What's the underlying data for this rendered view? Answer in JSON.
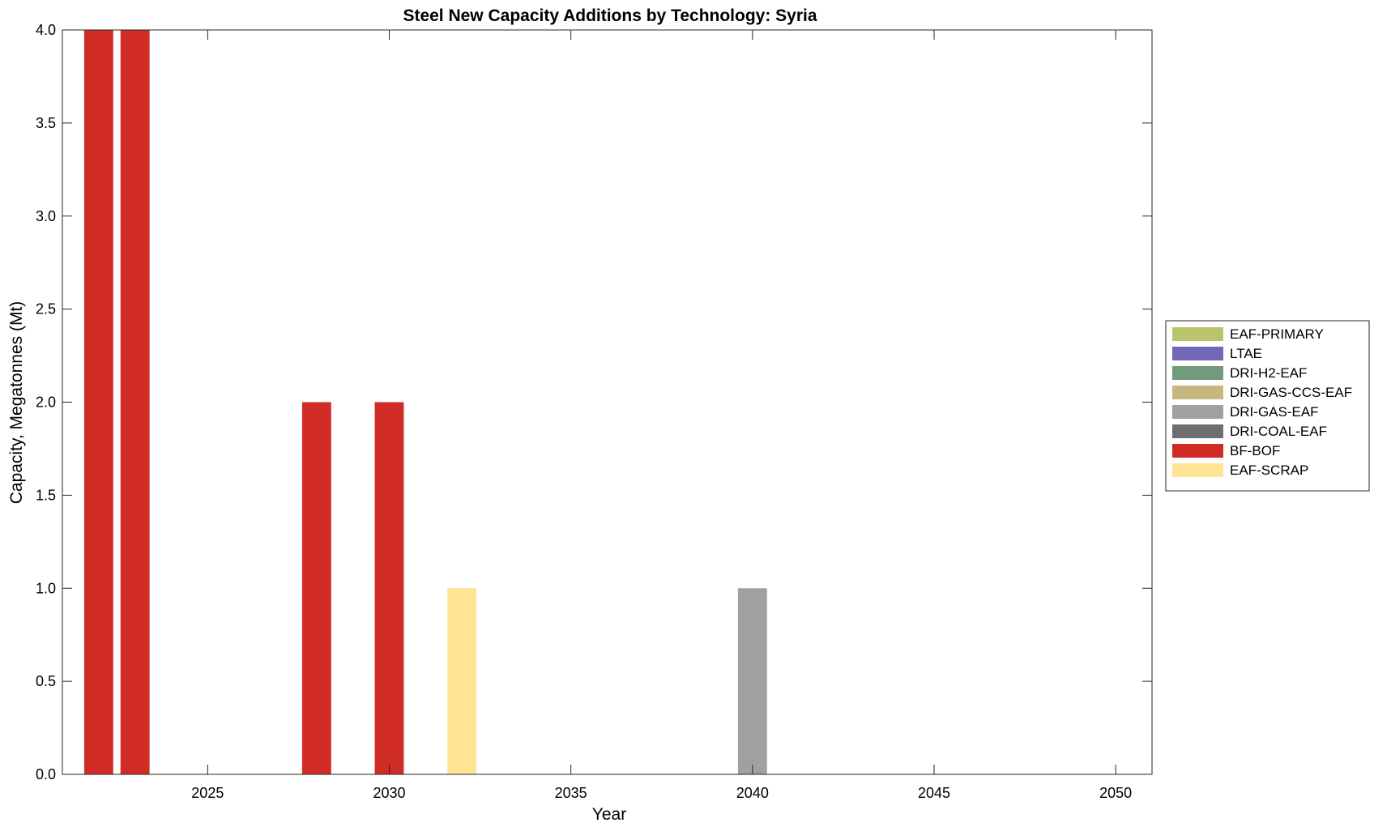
{
  "chart_data": {
    "type": "bar",
    "stacked": true,
    "title": "Steel New Capacity Additions by Technology: Syria",
    "xlabel": "Year",
    "ylabel": "Capacity, Megatonnes (Mt)",
    "x": [
      2022,
      2023,
      2028,
      2030,
      2032,
      2040
    ],
    "xlim": [
      2021,
      2051
    ],
    "ylim": [
      0,
      4
    ],
    "xticks": [
      2025,
      2030,
      2035,
      2040,
      2045,
      2050
    ],
    "yticks": [
      "0.0",
      "0.5",
      "1.0",
      "1.5",
      "2.0",
      "2.5",
      "3.0",
      "3.5",
      "4.0"
    ],
    "grid": false,
    "legend_position": "right",
    "series": [
      {
        "name": "EAF-PRIMARY",
        "color": "#bcc46a",
        "values": [
          0,
          0,
          0,
          0,
          0,
          0
        ]
      },
      {
        "name": "LTAE",
        "color": "#7267b8",
        "values": [
          0,
          0,
          0,
          0,
          0,
          0
        ]
      },
      {
        "name": "DRI-H2-EAF",
        "color": "#729a7c",
        "values": [
          0,
          0,
          0,
          0,
          0,
          0
        ]
      },
      {
        "name": "DRI-GAS-CCS-EAF",
        "color": "#c4b87e",
        "values": [
          0,
          0,
          0,
          0,
          0,
          0
        ]
      },
      {
        "name": "DRI-GAS-EAF",
        "color": "#a0a0a0",
        "values": [
          0,
          0,
          0,
          0,
          0,
          1
        ]
      },
      {
        "name": "DRI-COAL-EAF",
        "color": "#6e6e6e",
        "values": [
          0,
          0,
          0,
          0,
          0,
          0
        ]
      },
      {
        "name": "BF-BOF",
        "color": "#d12b25",
        "values": [
          4,
          4,
          2,
          2,
          0,
          0
        ]
      },
      {
        "name": "EAF-SCRAP",
        "color": "#ffe494",
        "values": [
          0,
          0,
          0,
          0,
          1,
          0
        ]
      }
    ]
  }
}
